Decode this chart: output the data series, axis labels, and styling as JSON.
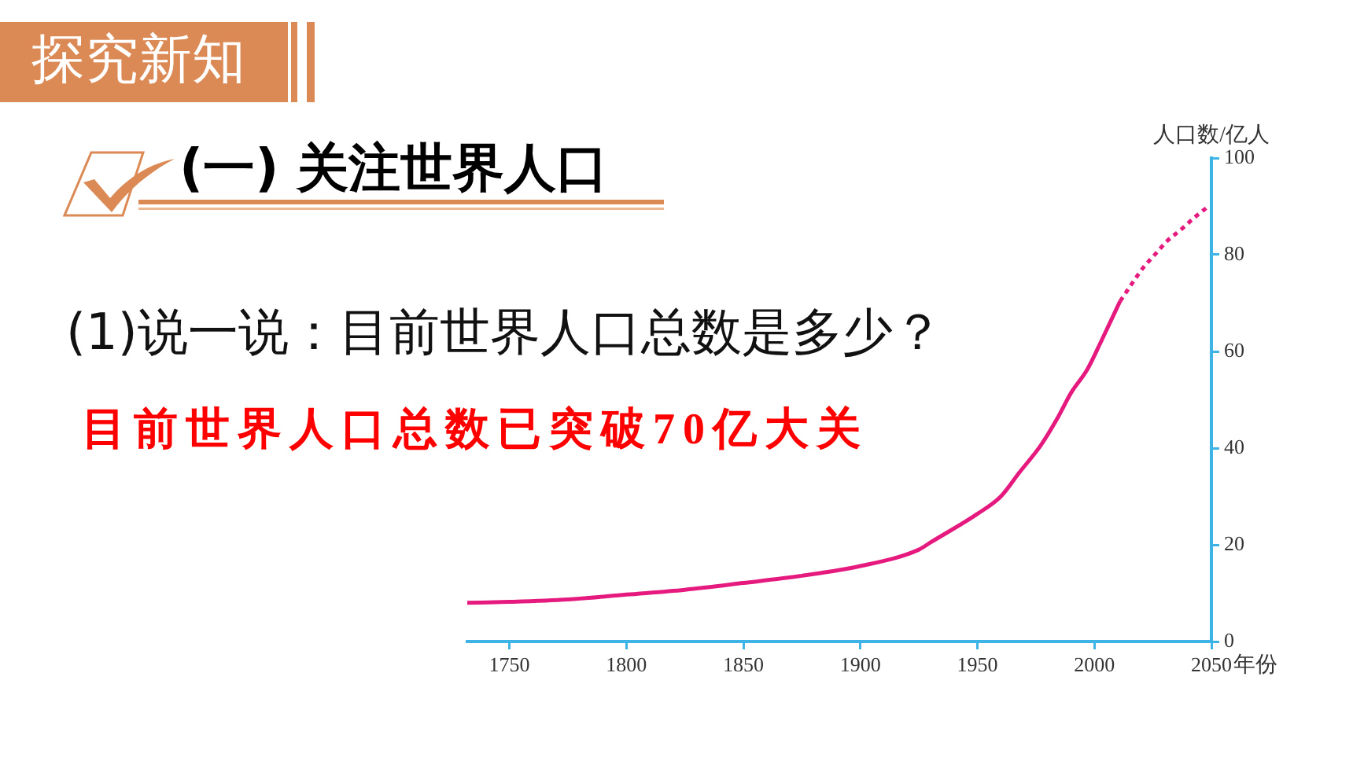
{
  "chart_data": {
    "type": "line",
    "title": "(一) 关注世界人口",
    "subtitle": "(1)说一说：目前世界人口总数是多少？",
    "annotations": [
      "探究新知",
      "目前世界人口总数已突破70亿大关"
    ],
    "xlabel": "年份",
    "ylabel": "人口数/亿人",
    "series": [
      {
        "color": "#e5197e",
        "line_style": "solid",
        "x": [
          1732,
          1750,
          1775,
          1800,
          1825,
          1850,
          1875,
          1900,
          1925,
          1930,
          1950,
          1960,
          1968,
          1977,
          1984,
          1990,
          1997,
          2003,
          2011
        ],
        "values": [
          8.0,
          8.2,
          8.7,
          9.7,
          10.7,
          12.1,
          13.6,
          15.6,
          19.0,
          20.5,
          26.4,
          30.0,
          35.0,
          40.5,
          46.0,
          51.4,
          56.3,
          62.2,
          70.4
        ]
      },
      {
        "color": "#e5197e",
        "line_style": "dotted",
        "x": [
          2011,
          2017,
          2021,
          2026,
          2031,
          2037,
          2043,
          2049
        ],
        "values": [
          70.4,
          74.7,
          77.4,
          80.1,
          82.8,
          85.2,
          87.8,
          90.1
        ]
      }
    ],
    "xlim": [
      1732,
      2050
    ],
    "xticks": [
      1750,
      1800,
      1850,
      1900,
      1950,
      2000,
      2050
    ],
    "ylim": [
      0,
      100
    ],
    "yticks": [
      0,
      20,
      40,
      60,
      80,
      100
    ],
    "marker": "none",
    "grid": false,
    "legend": false
  }
}
